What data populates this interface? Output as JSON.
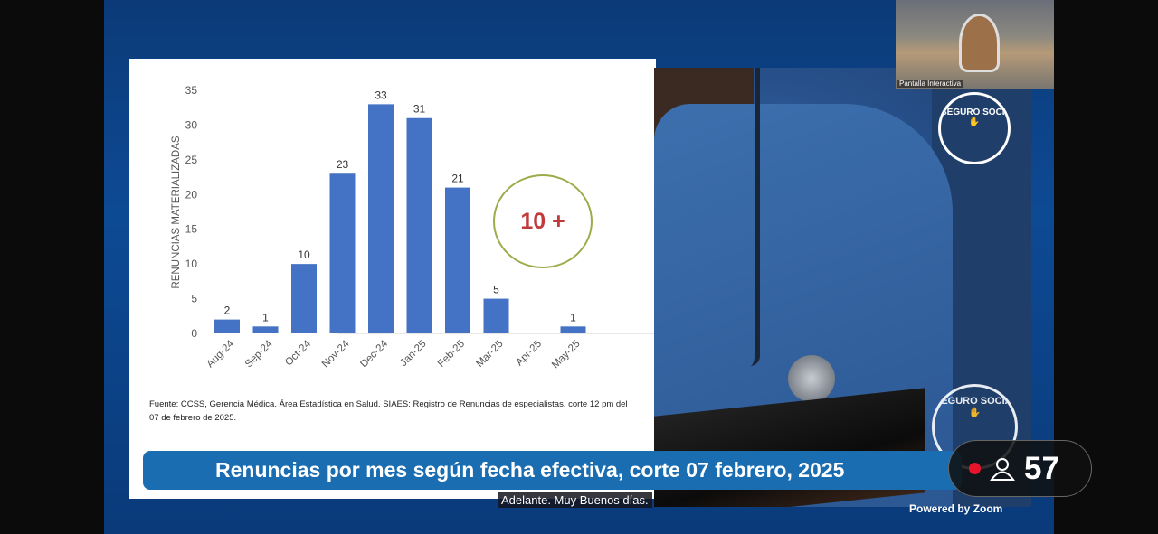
{
  "thumbnail": {
    "label": "Pantalla Interactiva"
  },
  "logo_text": "SEGURO SOCIAL COSTA RICA",
  "slide": {
    "source": "Fuente: CCSS, Gerencia Médica. Área Estadística en Salud. SIAES: Registro de Renuncias de especialistas, corte 12 pm del  07 de febrero de 2025.",
    "annotation": "10 +",
    "banner": "Renuncias por mes según fecha efectiva, corte 07 febrero, 2025"
  },
  "caption": "Adelante. Muy Buenos días.",
  "powered_by": "Powered by Zoom",
  "participants": {
    "count": "57",
    "recording": true,
    "icon": "person-icon"
  },
  "colors": {
    "bar": "#4472c4",
    "annotation": "#c0393b",
    "circle": "#9aad4a",
    "banner": "#1a6db0"
  },
  "chart_data": {
    "type": "bar",
    "categories": [
      "Aug-24",
      "Sep-24",
      "Oct-24",
      "Nov-24",
      "Dec-24",
      "Jan-25",
      "Feb-25",
      "Mar-25",
      "Apr-25",
      "May-25"
    ],
    "values": [
      2,
      1,
      10,
      23,
      33,
      31,
      21,
      5,
      0,
      1
    ],
    "data_labels": [
      "2",
      "1",
      "10",
      "23",
      "33",
      "31",
      "21",
      "5",
      "",
      "1"
    ],
    "ylabel": "RENUNCIAS MATERIALIZADAS",
    "ylim": [
      0,
      35
    ],
    "yticks": [
      0,
      5,
      10,
      15,
      20,
      25,
      30,
      35
    ],
    "grid": false
  }
}
